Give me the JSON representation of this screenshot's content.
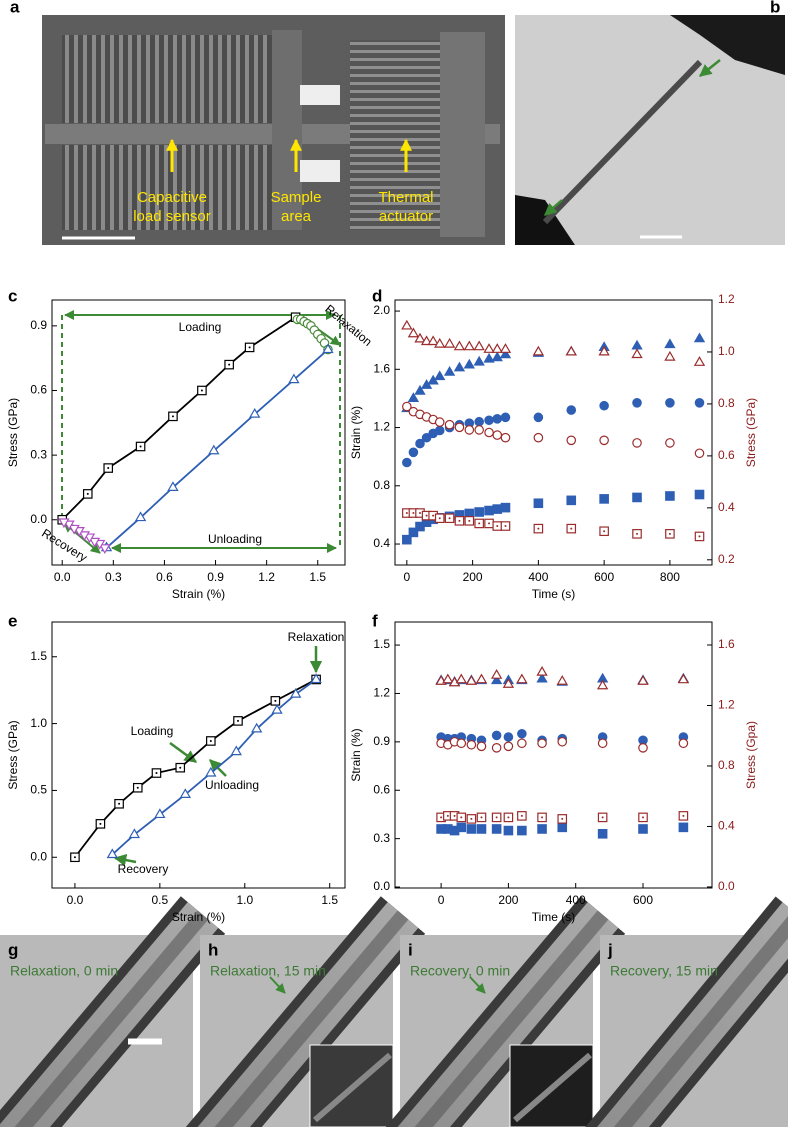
{
  "panel_a": {
    "label": "a",
    "annotations": [
      [
        "Capacitive",
        "load sensor"
      ],
      [
        "Sample",
        "area"
      ],
      [
        "Thermal",
        "actuator"
      ]
    ]
  },
  "panel_b": {
    "label": "b"
  },
  "chart_data": [
    {
      "type": "scatter",
      "panel_label": "c",
      "xlabel": "Strain (%)",
      "ylabel": "Stress (GPa)",
      "xlim": [
        -0.06,
        1.66
      ],
      "xticks": [
        {
          "value": 0,
          "label": "0.0"
        },
        0.3,
        0.6,
        0.9,
        1.2,
        1.5
      ],
      "ylim": [
        -0.21,
        1.02
      ],
      "yticks": [
        {
          "value": 0,
          "label": "0.0"
        },
        0.3,
        0.6,
        0.9
      ],
      "annotations": [
        "Loading",
        "Relaxation",
        "Unloading",
        "Recovery"
      ],
      "series": [
        {
          "color": "#000000",
          "marker": "square",
          "filled": false,
          "line": true,
          "x": [
            0,
            0.15,
            0.27,
            0.46,
            0.65,
            0.82,
            0.98,
            1.1,
            1.37
          ],
          "values": [
            0,
            0.12,
            0.24,
            0.34,
            0.48,
            0.6,
            0.72,
            0.8,
            0.94
          ]
        },
        {
          "color": "#4a8a3a",
          "marker": "circle",
          "filled": false,
          "line": false,
          "x": [
            1.38,
            1.4,
            1.42,
            1.44,
            1.46,
            1.48,
            1.5,
            1.52,
            1.54,
            1.56
          ],
          "values": [
            0.93,
            0.93,
            0.92,
            0.91,
            0.9,
            0.88,
            0.86,
            0.84,
            0.82,
            0.79
          ]
        },
        {
          "color": "#2e5fb4",
          "marker": "triangle",
          "filled": false,
          "line": true,
          "x": [
            1.56,
            1.36,
            1.13,
            0.89,
            0.65,
            0.46,
            0.26
          ],
          "values": [
            0.79,
            0.65,
            0.49,
            0.32,
            0.15,
            0.01,
            -0.13
          ]
        },
        {
          "color": "#b04fc4",
          "marker": "triangle-down",
          "filled": false,
          "line": false,
          "x": [
            0.25,
            0.22,
            0.19,
            0.16,
            0.13,
            0.1,
            0.07,
            0.04,
            0.01
          ],
          "values": [
            -0.13,
            -0.11,
            -0.1,
            -0.08,
            -0.07,
            -0.05,
            -0.04,
            -0.02,
            -0.01
          ]
        }
      ]
    },
    {
      "type": "scatter",
      "panel_label": "d",
      "xlabel": "Time (s)",
      "ylabel": "Strain (%)",
      "y2label": "Stress (GPa)",
      "xlim": [
        -36,
        928
      ],
      "xticks": [
        0,
        200,
        400,
        600,
        800
      ],
      "ylim": [
        0.256,
        2.076
      ],
      "yticks": [
        0.4,
        0.8,
        1.2,
        1.6,
        {
          "value": 2,
          "label": "2.0"
        }
      ],
      "y2lim": [
        0.18,
        1.2
      ],
      "y2ticks": [
        0.2,
        0.4,
        0.6,
        0.8,
        {
          "value": 1,
          "label": "1.0"
        },
        1.2
      ],
      "x": [
        0,
        20,
        40,
        60,
        80,
        100,
        130,
        160,
        190,
        220,
        250,
        275,
        300,
        400,
        500,
        600,
        700,
        800,
        890
      ],
      "series": [
        {
          "color": "#2e5fb4",
          "marker": "triangle",
          "filled": true,
          "values": [
            1.33,
            1.4,
            1.45,
            1.49,
            1.52,
            1.55,
            1.58,
            1.61,
            1.63,
            1.65,
            1.67,
            1.68,
            1.7,
            1.71,
            1.72,
            1.75,
            1.76,
            1.77,
            1.81
          ]
        },
        {
          "color": "#9b2c2c",
          "marker": "triangle",
          "filled": false,
          "axis": "y2",
          "values": [
            1.1,
            1.07,
            1.05,
            1.04,
            1.04,
            1.03,
            1.03,
            1.02,
            1.02,
            1.02,
            1.01,
            1.01,
            1.01,
            1.0,
            1.0,
            1.0,
            0.99,
            0.98,
            0.96
          ]
        },
        {
          "color": "#2e5fb4",
          "marker": "circle",
          "filled": true,
          "values": [
            0.96,
            1.03,
            1.09,
            1.13,
            1.16,
            1.18,
            1.2,
            1.22,
            1.23,
            1.24,
            1.25,
            1.26,
            1.27,
            1.27,
            1.32,
            1.35,
            1.37,
            1.37,
            1.37
          ]
        },
        {
          "color": "#9b2c2c",
          "marker": "circle",
          "filled": false,
          "axis": "y2",
          "values": [
            0.79,
            0.77,
            0.76,
            0.75,
            0.74,
            0.73,
            0.72,
            0.71,
            0.7,
            0.7,
            0.69,
            0.68,
            0.67,
            0.67,
            0.66,
            0.66,
            0.65,
            0.65,
            0.61
          ]
        },
        {
          "color": "#2e5fb4",
          "marker": "square",
          "filled": true,
          "values": [
            0.43,
            0.48,
            0.52,
            0.55,
            0.57,
            0.58,
            0.59,
            0.6,
            0.61,
            0.62,
            0.63,
            0.64,
            0.65,
            0.68,
            0.7,
            0.71,
            0.72,
            0.73,
            0.74
          ]
        },
        {
          "color": "#9b2c2c",
          "marker": "square",
          "filled": false,
          "axis": "y2",
          "values": [
            0.38,
            0.38,
            0.38,
            0.37,
            0.37,
            0.36,
            0.36,
            0.35,
            0.35,
            0.34,
            0.34,
            0.33,
            0.33,
            0.32,
            0.32,
            0.31,
            0.3,
            0.3,
            0.29
          ]
        }
      ]
    },
    {
      "type": "scatter",
      "panel_label": "e",
      "xlabel": "Strain (%)",
      "ylabel": "Stress (GPa)",
      "xlim": [
        -0.135,
        1.59
      ],
      "xticks": [
        {
          "value": 0,
          "label": "0.0"
        },
        0.5,
        {
          "value": 1,
          "label": "1.0"
        },
        1.5
      ],
      "ylim": [
        -0.23,
        1.76
      ],
      "yticks": [
        {
          "value": 0,
          "label": "0.0"
        },
        0.5,
        {
          "value": 1,
          "label": "1.0"
        },
        1.5
      ],
      "annotations": [
        "Relaxation",
        "Loading",
        "Unloading",
        "Recovery"
      ],
      "series": [
        {
          "color": "#000000",
          "marker": "square",
          "filled": false,
          "line": true,
          "x": [
            0,
            0.15,
            0.26,
            0.37,
            0.48,
            0.62,
            0.8,
            0.96,
            1.18,
            1.42
          ],
          "values": [
            0,
            0.25,
            0.4,
            0.52,
            0.63,
            0.67,
            0.87,
            1.02,
            1.17,
            1.33
          ]
        },
        {
          "color": "#2e5fb4",
          "marker": "triangle",
          "filled": false,
          "line": true,
          "x": [
            1.42,
            1.3,
            1.19,
            1.07,
            0.95,
            0.8,
            0.65,
            0.5,
            0.35,
            0.22
          ],
          "values": [
            1.33,
            1.22,
            1.1,
            0.96,
            0.79,
            0.63,
            0.47,
            0.32,
            0.17,
            0.02
          ]
        }
      ]
    },
    {
      "type": "scatter",
      "panel_label": "f",
      "xlabel": "Time (s)",
      "ylabel": "Strain (%)",
      "y2label": "Stress (Gpa)",
      "xlim": [
        -137,
        805
      ],
      "xticks": [
        0,
        200,
        400,
        600
      ],
      "ylim": [
        -0.006,
        1.643
      ],
      "yticks": [
        {
          "value": 0,
          "label": "0.0"
        },
        0.3,
        0.6,
        0.9,
        1.2,
        1.5
      ],
      "y2lim": [
        -0.007,
        1.752
      ],
      "y2ticks": [
        {
          "value": 0,
          "label": "0.0"
        },
        0.4,
        0.8,
        1.2,
        1.6
      ],
      "x": [
        0,
        20,
        40,
        60,
        90,
        120,
        165,
        200,
        240,
        300,
        360,
        480,
        600,
        720
      ],
      "series": [
        {
          "color": "#2e5fb4",
          "marker": "triangle",
          "filled": true,
          "values": [
            1.28,
            1.28,
            1.27,
            1.28,
            1.28,
            1.28,
            1.28,
            1.28,
            1.28,
            1.29,
            1.27,
            1.29,
            1.28,
            1.29
          ]
        },
        {
          "color": "#9b2c2c",
          "marker": "triangle",
          "filled": false,
          "axis": "y2",
          "values": [
            1.36,
            1.37,
            1.35,
            1.37,
            1.36,
            1.37,
            1.4,
            1.34,
            1.37,
            1.42,
            1.36,
            1.33,
            1.36,
            1.37
          ]
        },
        {
          "color": "#2e5fb4",
          "marker": "circle",
          "filled": true,
          "values": [
            0.93,
            0.92,
            0.92,
            0.93,
            0.92,
            0.91,
            0.94,
            0.93,
            0.95,
            0.91,
            0.92,
            0.93,
            0.91,
            0.93
          ]
        },
        {
          "color": "#9b2c2c",
          "marker": "circle",
          "filled": false,
          "axis": "y2",
          "values": [
            0.95,
            0.94,
            0.96,
            0.95,
            0.94,
            0.93,
            0.92,
            0.93,
            0.95,
            0.95,
            0.96,
            0.95,
            0.92,
            0.95
          ]
        },
        {
          "color": "#2e5fb4",
          "marker": "square",
          "filled": true,
          "values": [
            0.36,
            0.36,
            0.35,
            0.37,
            0.36,
            0.36,
            0.36,
            0.35,
            0.35,
            0.36,
            0.37,
            0.33,
            0.36,
            0.37
          ]
        },
        {
          "color": "#9b2c2c",
          "marker": "square",
          "filled": false,
          "axis": "y2",
          "values": [
            0.46,
            0.47,
            0.47,
            0.46,
            0.45,
            0.46,
            0.46,
            0.46,
            0.47,
            0.46,
            0.45,
            0.46,
            0.46,
            0.47
          ]
        }
      ]
    }
  ],
  "panels_g_j": [
    {
      "label": "g",
      "caption": "Relaxation, 0 min"
    },
    {
      "label": "h",
      "caption": "Relaxation, 15 min"
    },
    {
      "label": "i",
      "caption": "Recovery, 0 min"
    },
    {
      "label": "j",
      "caption": "Recovery, 15 min"
    }
  ]
}
